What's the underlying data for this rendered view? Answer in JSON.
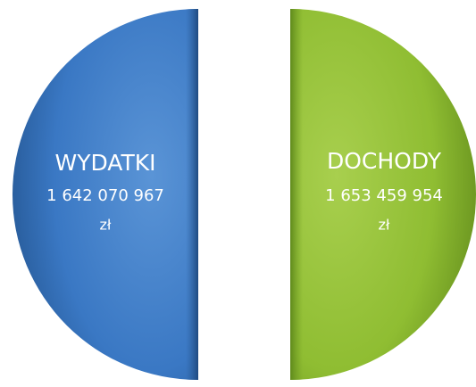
{
  "left": {
    "label": "WYDATKI",
    "amount": "1 642 070 967",
    "unit": "zł"
  },
  "right": {
    "label": "DOCHODY",
    "amount": "1 653 459 954",
    "unit": "zł"
  }
}
